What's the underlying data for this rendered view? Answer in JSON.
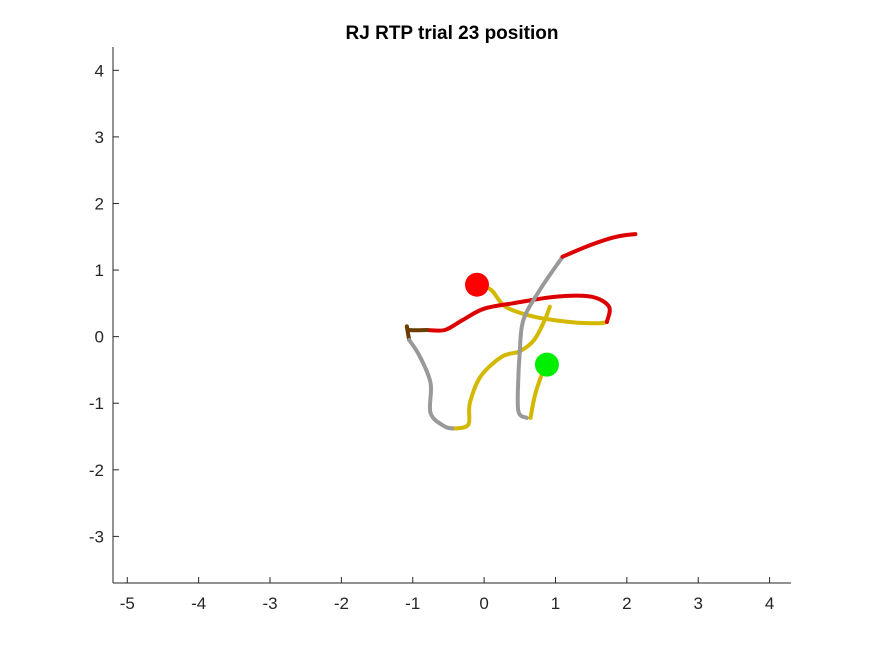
{
  "chart_data": {
    "type": "line",
    "title": "RJ  RTP trial 23 position",
    "xlabel": "",
    "ylabel": "",
    "xlim": [
      -5.2,
      4.3
    ],
    "ylim": [
      -3.7,
      4.35
    ],
    "xticks": [
      -5,
      -4,
      -3,
      -2,
      -1,
      0,
      1,
      2,
      3,
      4
    ],
    "yticks": [
      -3,
      -2,
      -1,
      0,
      1,
      2,
      3,
      4
    ],
    "x_tick_labels": [
      "-5",
      "-4",
      "-3",
      "-2",
      "-1",
      "0",
      "1",
      "2",
      "3",
      "4"
    ],
    "y_tick_labels": [
      "-3",
      "-2",
      "-1",
      "0",
      "1",
      "2",
      "3",
      "4"
    ],
    "grid": false,
    "colors": {
      "red": "#dd0000",
      "gold": "#d4b800",
      "gray": "#999999",
      "brown": "#6b3e00",
      "start_marker": "#ff0000",
      "end_marker": "#00ee00"
    },
    "series": [
      {
        "color": "gold",
        "points": [
          [
            -0.1,
            0.78
          ],
          [
            0.1,
            0.7
          ],
          [
            0.3,
            0.45
          ],
          [
            0.7,
            0.3
          ],
          [
            1.2,
            0.22
          ],
          [
            1.6,
            0.2
          ],
          [
            1.72,
            0.22
          ]
        ]
      },
      {
        "color": "red",
        "points": [
          [
            1.72,
            0.22
          ],
          [
            1.75,
            0.45
          ],
          [
            1.5,
            0.6
          ],
          [
            1.0,
            0.6
          ],
          [
            0.4,
            0.5
          ],
          [
            0.0,
            0.42
          ],
          [
            -0.3,
            0.25
          ],
          [
            -0.55,
            0.1
          ],
          [
            -0.8,
            0.1
          ]
        ]
      },
      {
        "color": "brown",
        "points": [
          [
            -0.8,
            0.1
          ],
          [
            -1.05,
            0.1
          ],
          [
            -1.08,
            0.15
          ],
          [
            -1.05,
            -0.05
          ]
        ]
      },
      {
        "color": "gray",
        "points": [
          [
            -1.05,
            -0.05
          ],
          [
            -0.9,
            -0.3
          ],
          [
            -0.75,
            -0.7
          ],
          [
            -0.75,
            -1.15
          ],
          [
            -0.55,
            -1.35
          ],
          [
            -0.4,
            -1.38
          ]
        ]
      },
      {
        "color": "gold",
        "points": [
          [
            -0.4,
            -1.38
          ],
          [
            -0.22,
            -1.32
          ],
          [
            -0.2,
            -1.0
          ],
          [
            -0.05,
            -0.6
          ],
          [
            0.25,
            -0.3
          ],
          [
            0.5,
            -0.22
          ],
          [
            0.7,
            -0.05
          ],
          [
            0.85,
            0.25
          ],
          [
            0.92,
            0.45
          ]
        ]
      },
      {
        "color": "gray",
        "points": [
          [
            0.5,
            -0.22
          ],
          [
            0.55,
            0.25
          ],
          [
            0.78,
            0.7
          ],
          [
            1.1,
            1.2
          ]
        ]
      },
      {
        "color": "red",
        "points": [
          [
            1.1,
            1.2
          ],
          [
            1.5,
            1.38
          ],
          [
            1.85,
            1.5
          ],
          [
            2.12,
            1.54
          ]
        ]
      },
      {
        "color": "gray",
        "points": [
          [
            0.5,
            -0.22
          ],
          [
            0.48,
            -0.6
          ],
          [
            0.48,
            -1.12
          ],
          [
            0.6,
            -1.22
          ]
        ]
      },
      {
        "color": "gold",
        "points": [
          [
            0.65,
            -1.22
          ],
          [
            0.72,
            -0.85
          ],
          [
            0.85,
            -0.45
          ],
          [
            0.88,
            -0.42
          ]
        ]
      }
    ],
    "markers": [
      {
        "x": -0.1,
        "y": 0.78,
        "color": "start_marker"
      },
      {
        "x": 0.88,
        "y": -0.42,
        "color": "end_marker"
      }
    ]
  }
}
